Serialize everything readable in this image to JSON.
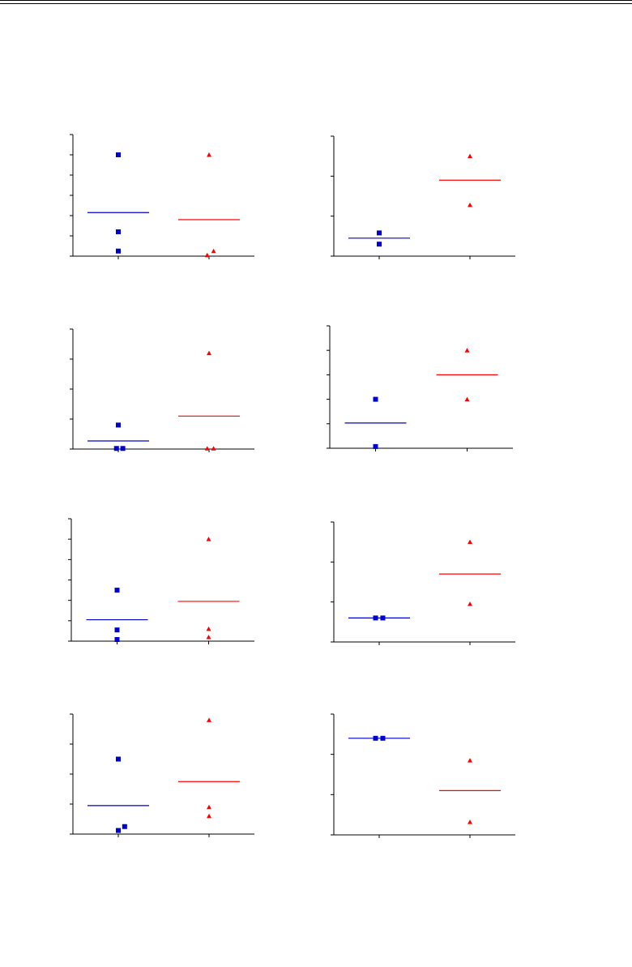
{
  "colors": {
    "group1": "#0000cc",
    "group2": "#ff0000",
    "axis": "#000000"
  },
  "chart_data": [
    {
      "type": "scatter",
      "x_categories": 2,
      "y_tick_count": 6,
      "ylim": [
        0,
        6
      ],
      "series": [
        {
          "points": [
            [
              0.0,
              5
            ],
            [
              0.0,
              1.2
            ],
            [
              0.0,
              0.25
            ]
          ],
          "mean": 2.15,
          "marker": "square"
        },
        {
          "points": [
            [
              0.0,
              5
            ],
            [
              -0.02,
              0.05
            ],
            [
              0.05,
              0.25
            ]
          ],
          "mean": 1.8,
          "marker": "triangle"
        }
      ]
    },
    {
      "type": "scatter",
      "x_categories": 2,
      "y_tick_count": 3,
      "ylim": [
        0,
        3
      ],
      "series": [
        {
          "points": [
            [
              0.0,
              0.58
            ],
            [
              0.0,
              0.3
            ]
          ],
          "mean": 0.45,
          "marker": "square"
        },
        {
          "points": [
            [
              0.0,
              2.5
            ],
            [
              0.0,
              1.28
            ]
          ],
          "mean": 1.9,
          "marker": "triangle"
        }
      ]
    },
    {
      "type": "scatter",
      "x_categories": 2,
      "y_tick_count": 4,
      "ylim": [
        0,
        4
      ],
      "series": [
        {
          "points": [
            [
              0.0,
              0.8
            ],
            [
              -0.02,
              0.02
            ],
            [
              0.05,
              0.02
            ]
          ],
          "mean": 0.27,
          "marker": "square"
        },
        {
          "points": [
            [
              0.0,
              3.2
            ],
            [
              -0.02,
              0.02
            ],
            [
              0.05,
              0.02
            ]
          ],
          "mean": 1.1,
          "marker": "triangle"
        }
      ]
    },
    {
      "type": "scatter",
      "x_categories": 2,
      "y_tick_count": 5,
      "ylim": [
        0,
        5
      ],
      "series": [
        {
          "points": [
            [
              0.0,
              2
            ],
            [
              0.0,
              0.07
            ]
          ],
          "mean": 1.03,
          "marker": "square"
        },
        {
          "points": [
            [
              0.0,
              4
            ],
            [
              0.0,
              2
            ]
          ],
          "mean": 3,
          "marker": "triangle"
        }
      ]
    },
    {
      "type": "scatter",
      "x_categories": 2,
      "y_tick_count": 6,
      "ylim": [
        0,
        6
      ],
      "series": [
        {
          "points": [
            [
              0.0,
              2.5
            ],
            [
              0.0,
              0.55
            ],
            [
              0.0,
              0.08
            ]
          ],
          "mean": 1.05,
          "marker": "square"
        },
        {
          "points": [
            [
              0.0,
              5
            ],
            [
              0.0,
              0.6
            ],
            [
              0.0,
              0.2
            ]
          ],
          "mean": 1.95,
          "marker": "triangle"
        }
      ]
    },
    {
      "type": "scatter",
      "x_categories": 2,
      "y_tick_count": 3,
      "ylim": [
        0,
        3
      ],
      "series": [
        {
          "points": [
            [
              -0.04,
              0.6
            ],
            [
              0.04,
              0.6
            ]
          ],
          "mean": 0.6,
          "marker": "square"
        },
        {
          "points": [
            [
              0.0,
              2.5
            ],
            [
              0.0,
              0.95
            ]
          ],
          "mean": 1.7,
          "marker": "triangle"
        }
      ]
    },
    {
      "type": "scatter",
      "x_categories": 2,
      "y_tick_count": 4,
      "ylim": [
        0,
        4
      ],
      "series": [
        {
          "points": [
            [
              0.0,
              2.5
            ],
            [
              0.07,
              0.25
            ],
            [
              0.0,
              0.12
            ]
          ],
          "mean": 0.95,
          "marker": "square"
        },
        {
          "points": [
            [
              0.0,
              3.8
            ],
            [
              0.0,
              0.9
            ],
            [
              0.0,
              0.6
            ]
          ],
          "mean": 1.75,
          "marker": "triangle"
        }
      ]
    },
    {
      "type": "scatter",
      "x_categories": 2,
      "y_tick_count": 3,
      "ylim": [
        0,
        3
      ],
      "series": [
        {
          "points": [
            [
              -0.04,
              2.4
            ],
            [
              0.04,
              2.4
            ]
          ],
          "mean": 2.4,
          "marker": "square"
        },
        {
          "points": [
            [
              0.0,
              1.85
            ],
            [
              0.0,
              0.32
            ]
          ],
          "mean": 1.1,
          "marker": "triangle"
        }
      ]
    }
  ]
}
